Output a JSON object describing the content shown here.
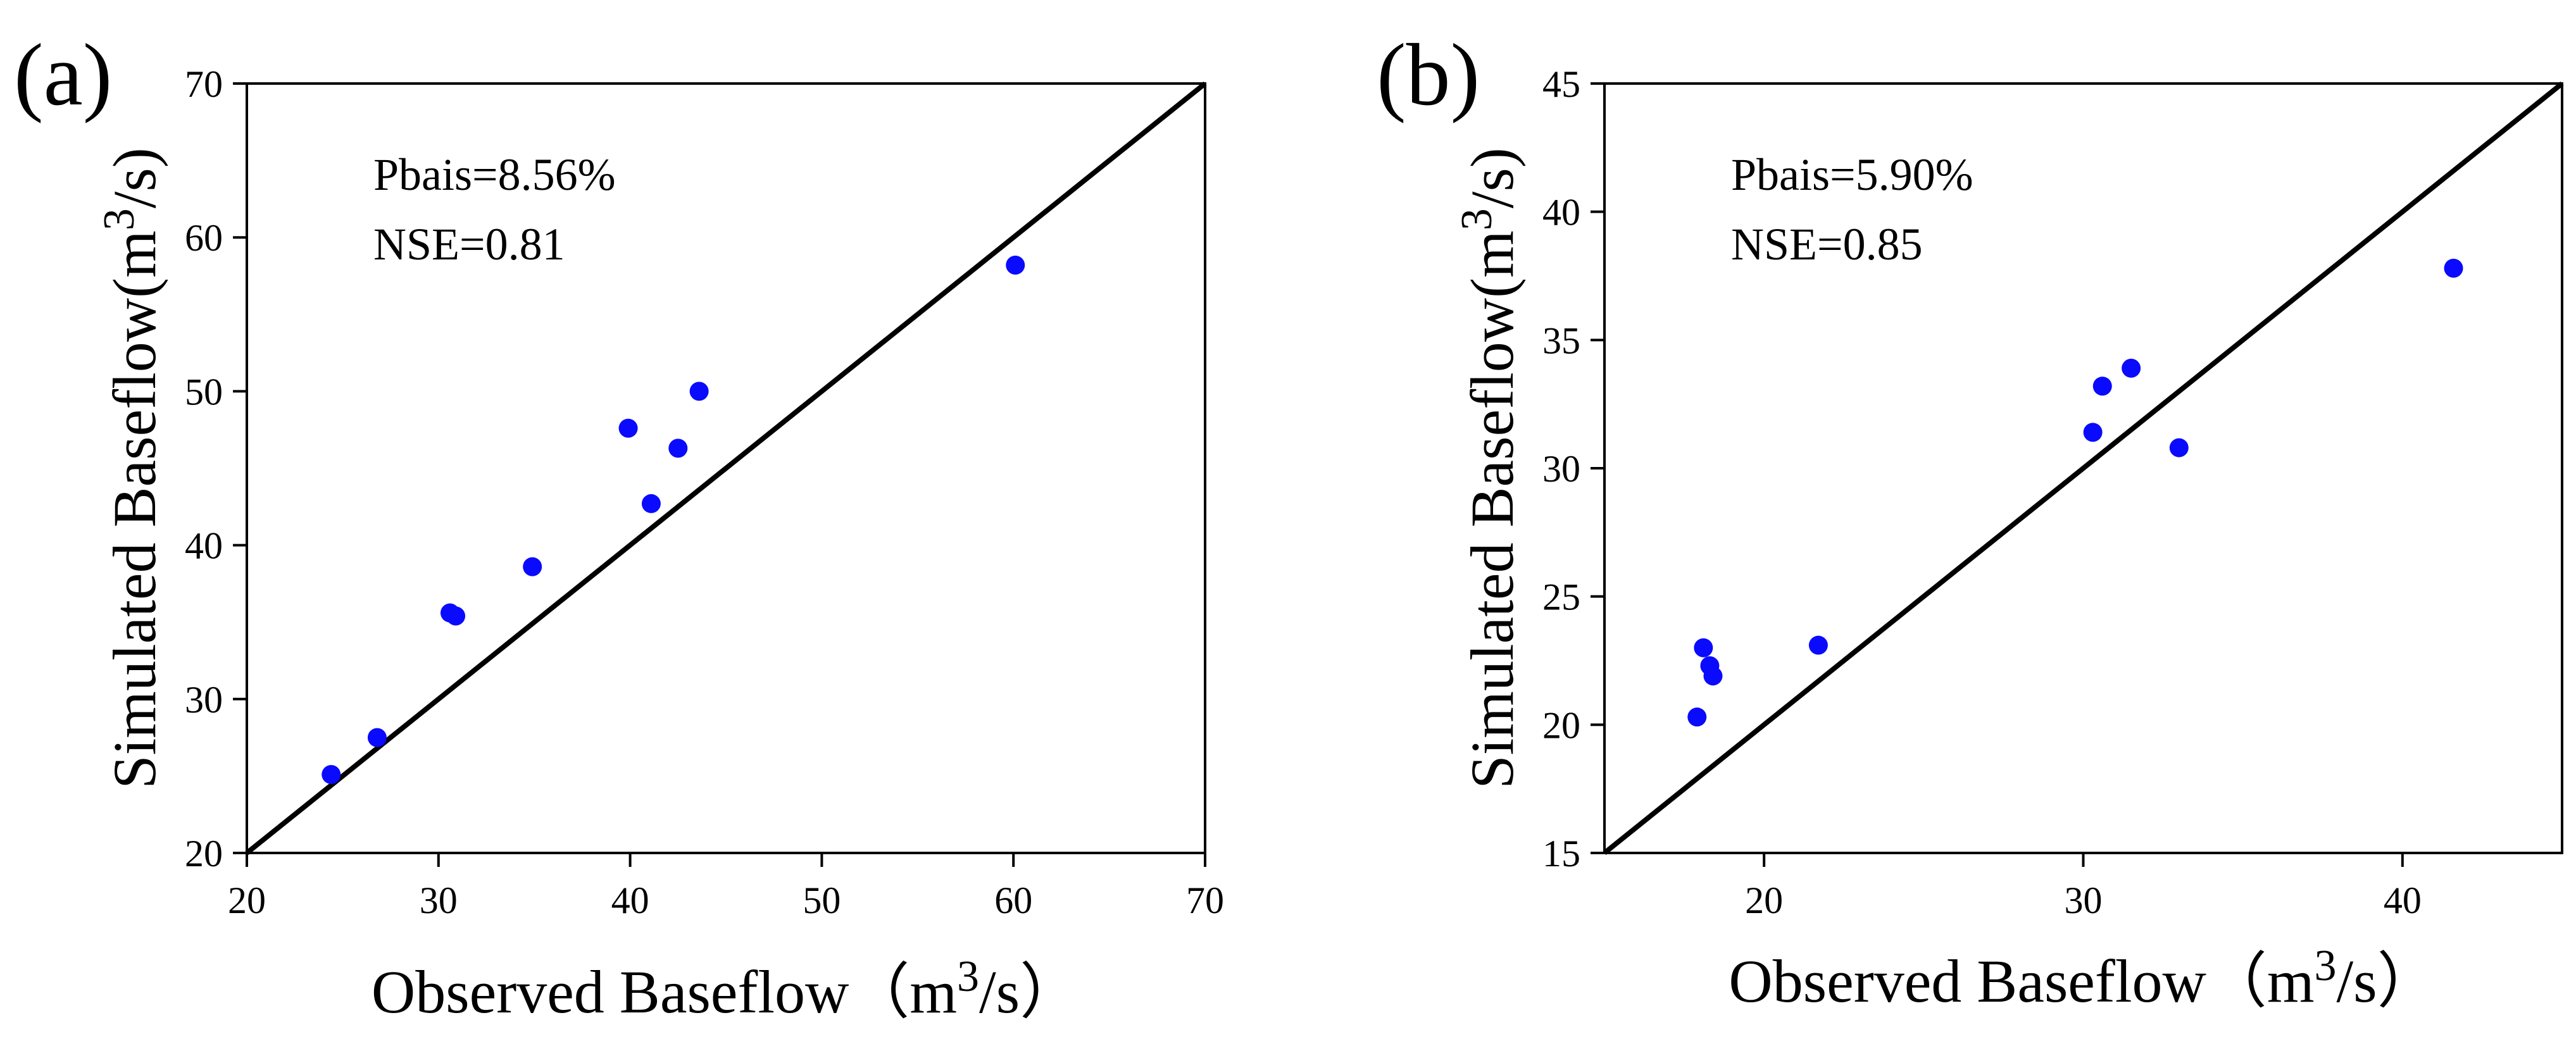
{
  "colors": {
    "points": "#0a0aff",
    "frame": "#000000",
    "one_to_one": "#000000",
    "background": "#ffffff"
  },
  "chart_data": [
    {
      "type": "scatter",
      "panel": "(a)",
      "xlabel": "Observed Baseflow（m3/s）",
      "xlabel_parts": {
        "pre": "Observed Baseflow（m",
        "sup": "3",
        "post": "/s）"
      },
      "ylabel": "Simulated Baseflow(m3/s)",
      "ylabel_parts": {
        "pre": "Simulated Baseflow(m",
        "sup": "3",
        "post": "/s)"
      },
      "xlim": [
        20,
        70
      ],
      "ylim": [
        20,
        70
      ],
      "xticks": [
        20,
        30,
        40,
        50,
        60,
        70
      ],
      "yticks": [
        20,
        30,
        40,
        50,
        60,
        70
      ],
      "xtick_labels": [
        "20",
        "30",
        "40",
        "50",
        "60",
        "70"
      ],
      "ytick_labels": [
        "20",
        "30",
        "40",
        "50",
        "60",
        "70"
      ],
      "reference_line": "1:1",
      "annotations": [
        "Pbais=8.56%",
        "NSE=0.81"
      ],
      "series": [
        {
          "name": "baseflow",
          "x": [
            24.4,
            26.8,
            30.6,
            30.9,
            34.9,
            39.9,
            41.1,
            42.5,
            43.6,
            60.1
          ],
          "y": [
            25.1,
            27.5,
            35.6,
            35.4,
            38.6,
            47.6,
            42.7,
            46.3,
            50.0,
            58.2
          ]
        }
      ],
      "grid": false,
      "legend": "none"
    },
    {
      "type": "scatter",
      "panel": "(b)",
      "xlabel": "Observed Baseflow（m3/s）",
      "xlabel_parts": {
        "pre": "Observed Baseflow（m",
        "sup": "3",
        "post": "/s）"
      },
      "ylabel": "Simulated Baseflow(m3/s)",
      "ylabel_parts": {
        "pre": "Simulated Baseflow(m",
        "sup": "3",
        "post": "/s)"
      },
      "xlim": [
        15,
        45
      ],
      "ylim": [
        15,
        45
      ],
      "xticks": [
        20,
        30,
        40
      ],
      "yticks": [
        15,
        20,
        25,
        30,
        35,
        40,
        45
      ],
      "xtick_labels": [
        "20",
        "30",
        "40"
      ],
      "ytick_labels": [
        "15",
        "20",
        "25",
        "30",
        "35",
        "40",
        "45"
      ],
      "reference_line": "1:1",
      "annotations": [
        "Pbais=5.90%",
        "NSE=0.85"
      ],
      "series": [
        {
          "name": "baseflow",
          "x": [
            17.9,
            18.1,
            18.3,
            18.4,
            21.7,
            30.3,
            30.6,
            31.5,
            33.0,
            41.6
          ],
          "y": [
            20.3,
            23.0,
            22.3,
            21.9,
            23.1,
            31.4,
            33.2,
            33.9,
            30.8,
            37.8
          ]
        }
      ],
      "grid": false,
      "legend": "none"
    }
  ]
}
